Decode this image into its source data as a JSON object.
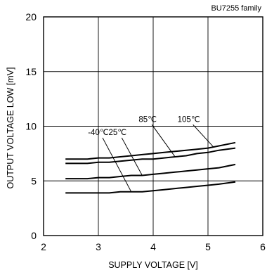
{
  "chart_data": {
    "type": "line",
    "note_label": "BU7255 family",
    "xlabel": "SUPPLY VOLTAGE [V]",
    "ylabel": "OUTPUT VOLTAGE LOW [mV]",
    "xlim": [
      2,
      6
    ],
    "ylim": [
      0,
      20
    ],
    "xticks": [
      2,
      3,
      4,
      5,
      6
    ],
    "yticks": [
      0,
      5,
      10,
      15,
      20
    ],
    "grid": true,
    "series": [
      {
        "name": "-40℃",
        "x": [
          2.4,
          2.6,
          2.8,
          3.0,
          3.2,
          3.4,
          3.6,
          3.8,
          4.0,
          4.2,
          4.4,
          4.6,
          4.8,
          5.0,
          5.2,
          5.5
        ],
        "y": [
          3.9,
          3.9,
          3.9,
          3.9,
          3.9,
          4.0,
          4.0,
          4.0,
          4.1,
          4.2,
          4.3,
          4.4,
          4.5,
          4.6,
          4.7,
          4.9
        ]
      },
      {
        "name": "25℃",
        "x": [
          2.4,
          2.6,
          2.8,
          3.0,
          3.2,
          3.4,
          3.6,
          3.8,
          4.0,
          4.2,
          4.4,
          4.6,
          4.8,
          5.0,
          5.2,
          5.5
        ],
        "y": [
          5.2,
          5.2,
          5.2,
          5.3,
          5.3,
          5.4,
          5.5,
          5.5,
          5.6,
          5.7,
          5.8,
          5.9,
          6.0,
          6.1,
          6.2,
          6.5
        ]
      },
      {
        "name": "85℃",
        "x": [
          2.4,
          2.6,
          2.8,
          3.0,
          3.2,
          3.4,
          3.6,
          3.8,
          4.0,
          4.2,
          4.4,
          4.6,
          4.8,
          5.0,
          5.2,
          5.5
        ],
        "y": [
          6.6,
          6.6,
          6.6,
          6.7,
          6.7,
          6.8,
          6.9,
          7.0,
          7.0,
          7.1,
          7.2,
          7.3,
          7.5,
          7.6,
          7.8,
          8.0
        ]
      },
      {
        "name": "105℃",
        "x": [
          2.4,
          2.6,
          2.8,
          3.0,
          3.2,
          3.4,
          3.6,
          3.8,
          4.0,
          4.2,
          4.4,
          4.6,
          4.8,
          5.0,
          5.2,
          5.5
        ],
        "y": [
          7.0,
          7.0,
          7.0,
          7.1,
          7.1,
          7.2,
          7.3,
          7.4,
          7.5,
          7.6,
          7.7,
          7.8,
          7.9,
          8.0,
          8.2,
          8.5
        ]
      }
    ],
    "annotations": [
      {
        "text": "-40℃",
        "series": "-40℃",
        "label_at": [
          3.0,
          9.2
        ],
        "point_at": [
          3.6,
          4.0
        ]
      },
      {
        "text": "25℃",
        "series": "25℃",
        "label_at": [
          3.35,
          9.2
        ],
        "point_at": [
          3.8,
          5.5
        ]
      },
      {
        "text": "85℃",
        "series": "85℃",
        "label_at": [
          3.9,
          10.4
        ],
        "point_at": [
          4.4,
          7.2
        ]
      },
      {
        "text": "105℃",
        "series": "105℃",
        "label_at": [
          4.65,
          10.4
        ],
        "point_at": [
          5.1,
          8.1
        ]
      }
    ]
  }
}
